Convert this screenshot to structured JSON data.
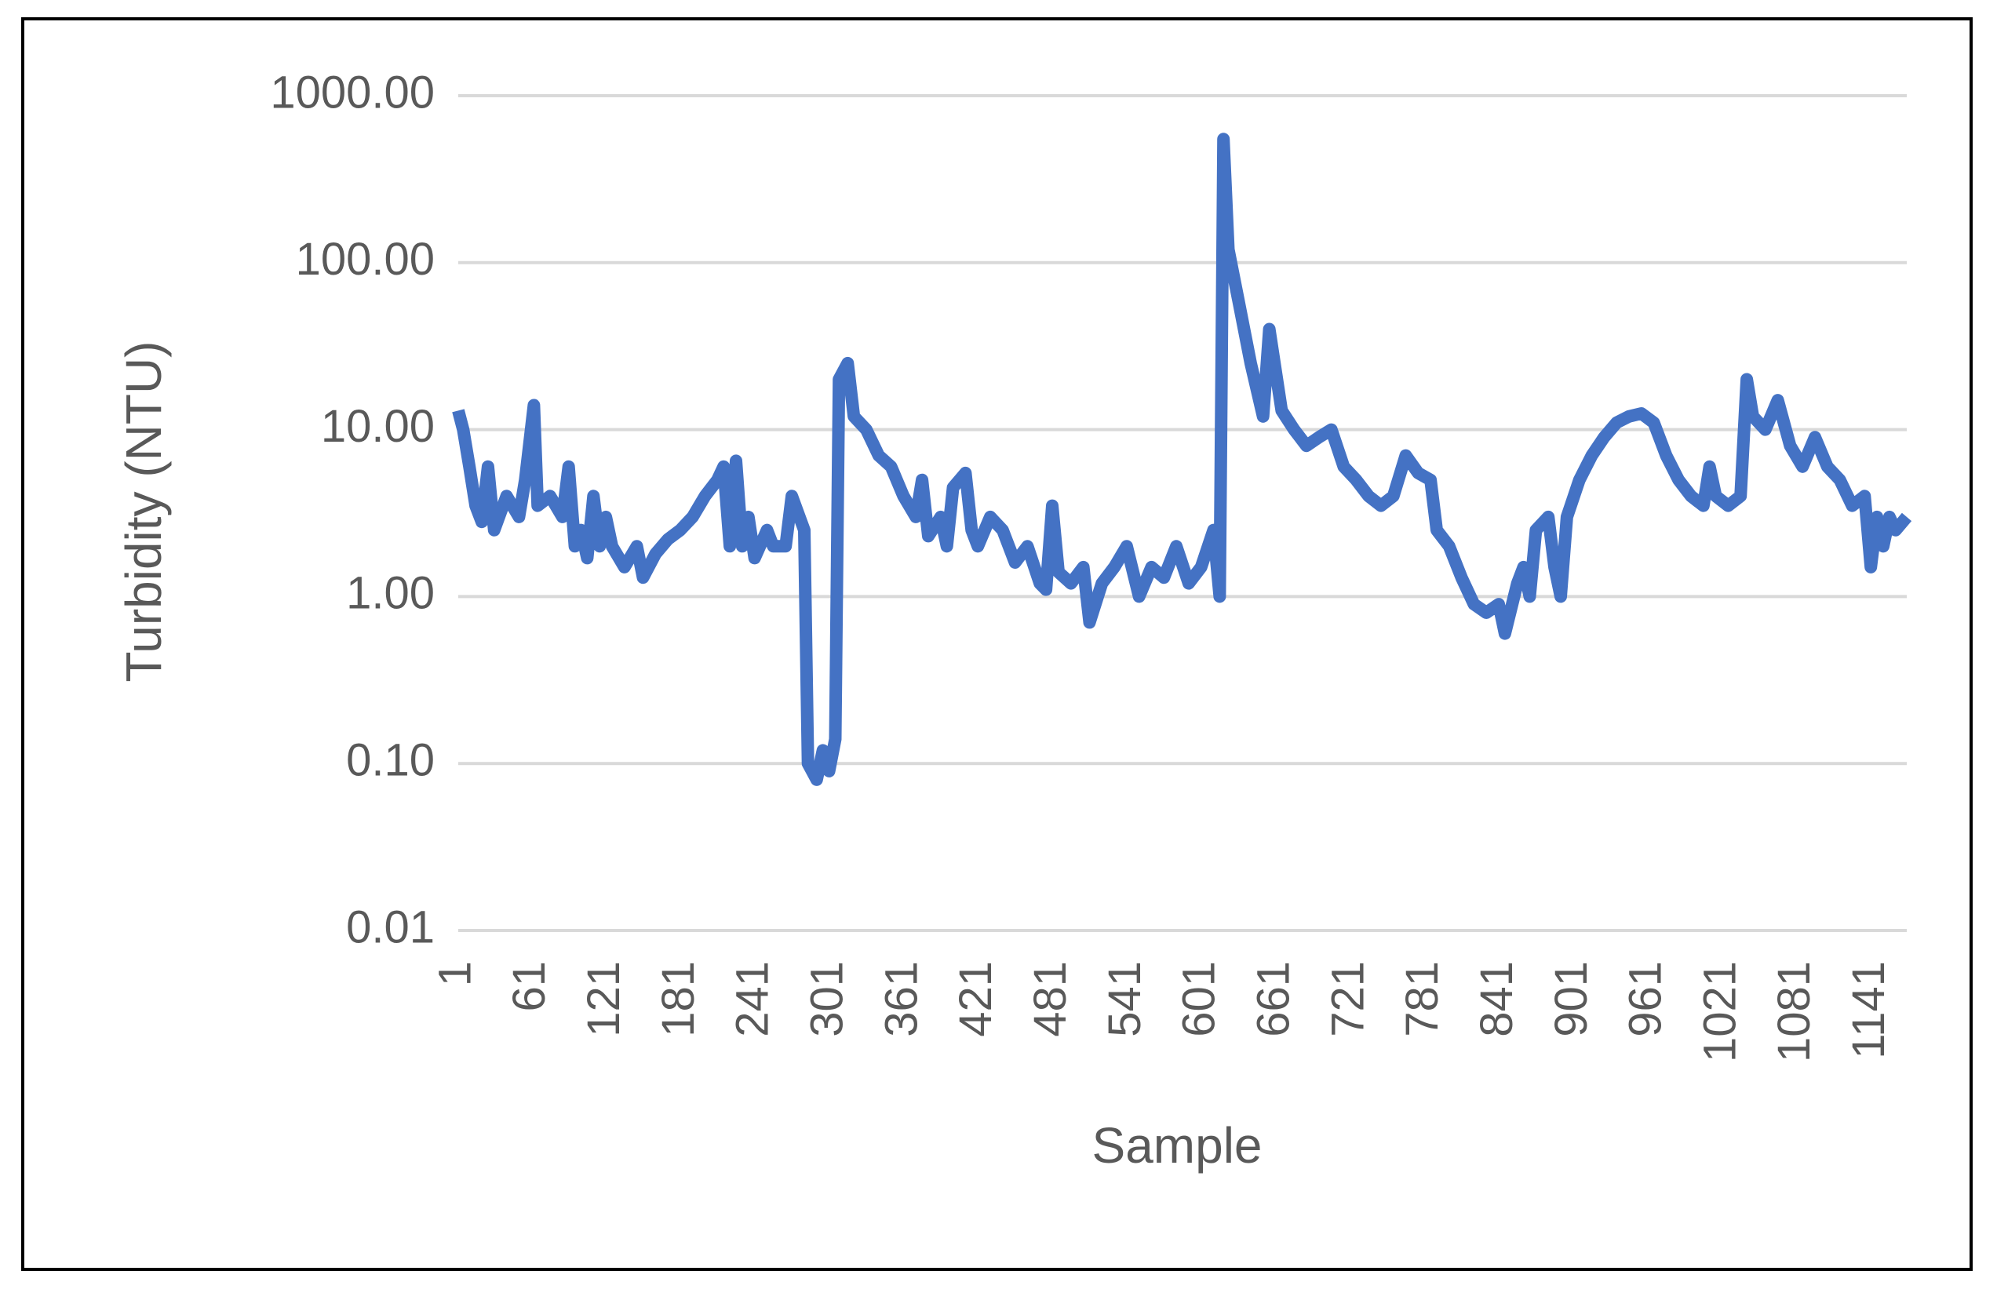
{
  "chart_data": {
    "type": "line",
    "x_label": "Sample",
    "y_label": "Turbidity (NTU)",
    "log_scale_y": true,
    "grid": true,
    "xlim": [
      1,
      1169
    ],
    "xticks": [
      1,
      61,
      121,
      181,
      241,
      301,
      361,
      421,
      481,
      541,
      601,
      661,
      721,
      781,
      841,
      901,
      961,
      1021,
      1081,
      1141
    ],
    "ylim": [
      0.01,
      1000
    ],
    "yticks": [
      0.01,
      {
        "value": 0.1,
        "label": "0.10"
      },
      {
        "value": 1,
        "label": "1.00"
      },
      {
        "value": 10,
        "label": "10.00"
      },
      {
        "value": 100,
        "label": "100.00"
      },
      {
        "value": 1000,
        "label": "1000.00"
      }
    ],
    "x": [
      1,
      5,
      10,
      15,
      20,
      25,
      30,
      40,
      50,
      55,
      62,
      65,
      75,
      85,
      90,
      95,
      100,
      105,
      110,
      115,
      120,
      125,
      135,
      145,
      150,
      160,
      170,
      180,
      190,
      200,
      210,
      215,
      220,
      225,
      230,
      235,
      240,
      250,
      255,
      265,
      270,
      280,
      283,
      290,
      295,
      300,
      305,
      308,
      315,
      320,
      330,
      340,
      350,
      360,
      370,
      375,
      380,
      390,
      395,
      400,
      410,
      415,
      420,
      430,
      440,
      450,
      460,
      470,
      475,
      480,
      485,
      495,
      505,
      510,
      520,
      530,
      540,
      550,
      560,
      570,
      580,
      590,
      600,
      610,
      615,
      618,
      622,
      630,
      640,
      650,
      655,
      665,
      675,
      685,
      695,
      705,
      715,
      725,
      735,
      745,
      755,
      765,
      775,
      785,
      790,
      800,
      810,
      820,
      830,
      840,
      845,
      855,
      860,
      865,
      870,
      880,
      885,
      890,
      895,
      905,
      915,
      925,
      935,
      945,
      955,
      965,
      975,
      985,
      995,
      1005,
      1010,
      1015,
      1025,
      1035,
      1040,
      1045,
      1055,
      1065,
      1075,
      1085,
      1095,
      1105,
      1115,
      1125,
      1135,
      1140,
      1145,
      1150,
      1155,
      1160,
      1169
    ],
    "series": [
      {
        "name": "Turbidity",
        "color": "#4472c4",
        "values": [
          13,
          10,
          6,
          3.5,
          2.8,
          6,
          2.5,
          4,
          3,
          5,
          14,
          3.5,
          4,
          3,
          6,
          2,
          2.5,
          1.7,
          4,
          2,
          3,
          2,
          1.5,
          2,
          1.3,
          1.8,
          2.2,
          2.5,
          3,
          4,
          5,
          6,
          2,
          6.5,
          2,
          3,
          1.7,
          2.5,
          2,
          2,
          4,
          2.5,
          0.1,
          0.08,
          0.12,
          0.09,
          0.14,
          20,
          25,
          12,
          10,
          7,
          6,
          4,
          3,
          5,
          2.3,
          3,
          2,
          4.5,
          5.5,
          2.5,
          2,
          3,
          2.5,
          1.6,
          2,
          1.2,
          1.1,
          3.5,
          1.4,
          1.2,
          1.5,
          0.7,
          1.2,
          1.5,
          2,
          1,
          1.5,
          1.3,
          2,
          1.2,
          1.5,
          2.5,
          1,
          550,
          120,
          60,
          25,
          12,
          40,
          13,
          10,
          8,
          9,
          10,
          6,
          5,
          4,
          3.5,
          4,
          7,
          5.5,
          5,
          2.5,
          2,
          1.3,
          0.9,
          0.8,
          0.9,
          0.6,
          1.2,
          1.5,
          1,
          2.5,
          3,
          1.5,
          1,
          3,
          5,
          7,
          9,
          11,
          12,
          12.5,
          11,
          7,
          5,
          4,
          3.5,
          6,
          4,
          3.5,
          4,
          20,
          12,
          10,
          15,
          8,
          6,
          9,
          6,
          5,
          3.5,
          4,
          1.5,
          3,
          2,
          3,
          2.5,
          3
        ]
      }
    ]
  }
}
